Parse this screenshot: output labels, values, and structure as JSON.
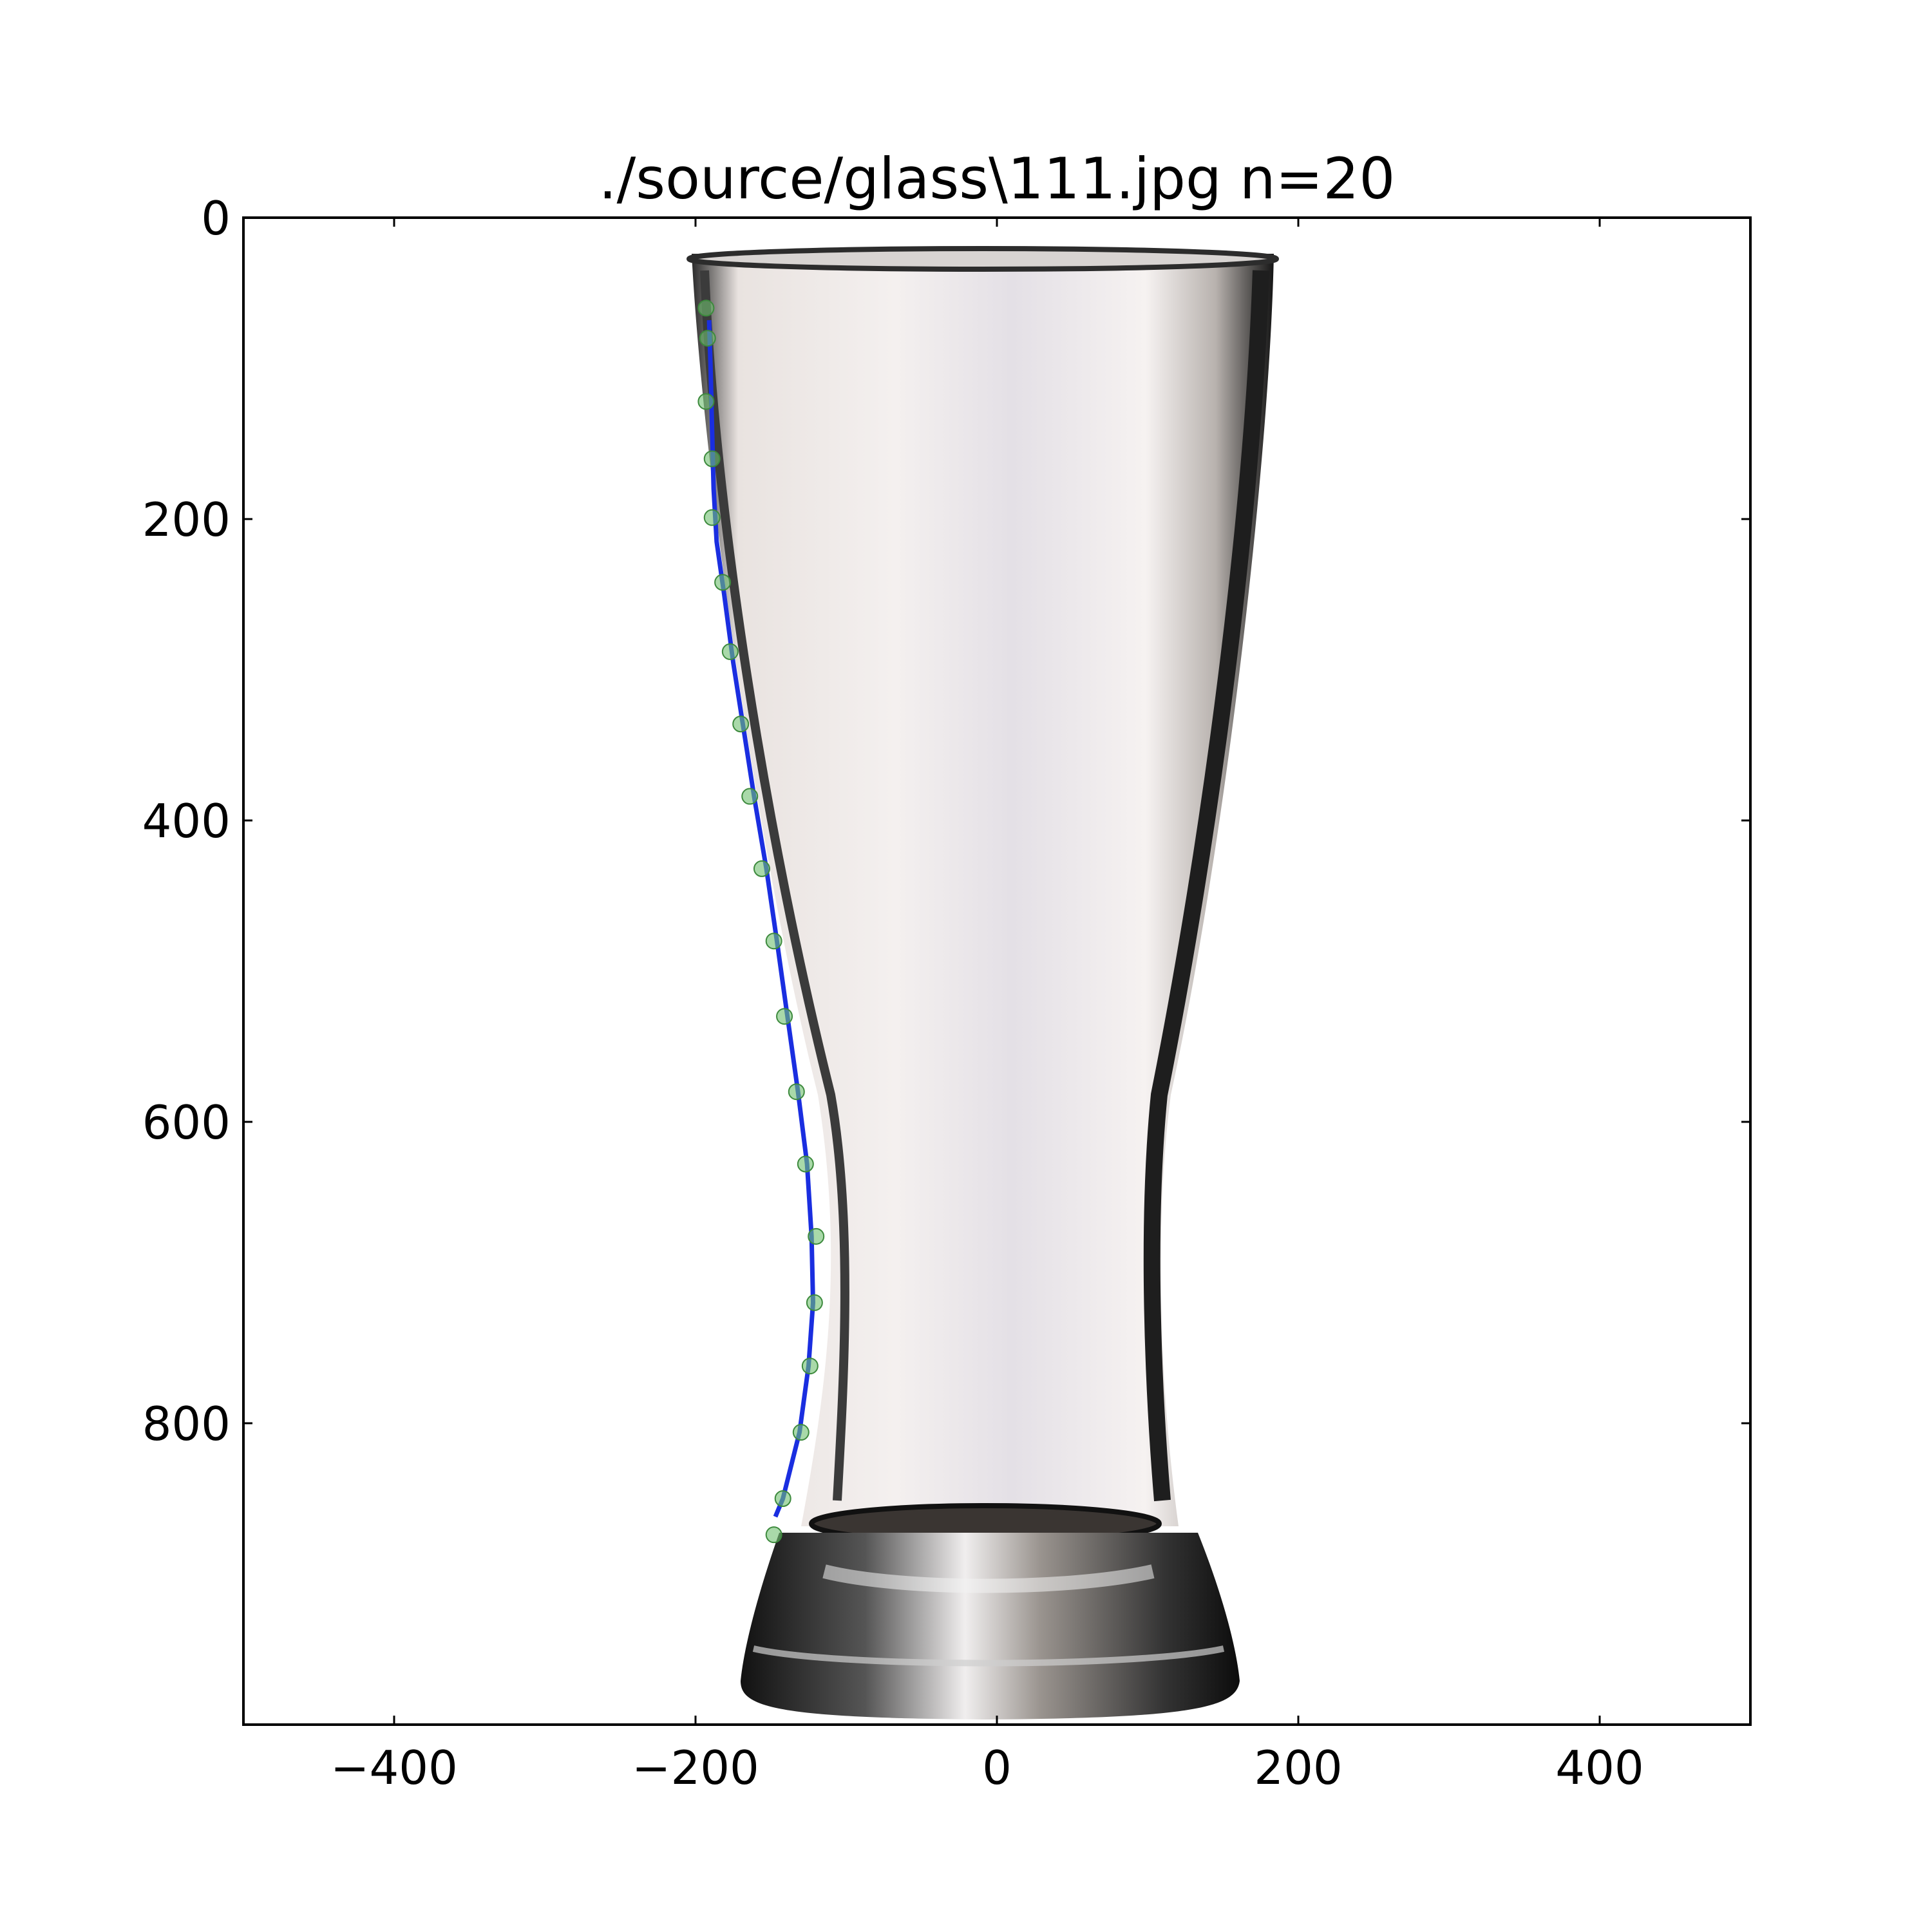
{
  "chart_data": {
    "type": "scatter",
    "title": "./source/glass\\111.jpg n=20",
    "xlabel": "",
    "ylabel": "",
    "xlim": [
      -500,
      500
    ],
    "ylim": [
      0,
      1000
    ],
    "y_inverted": true,
    "grid": false,
    "x_ticks": [
      -400,
      -200,
      0,
      200,
      400
    ],
    "x_tick_labels": [
      "−400",
      "−200",
      "0",
      "200",
      "400"
    ],
    "y_ticks": [
      0,
      200,
      400,
      600,
      800
    ],
    "y_tick_labels": [
      "0",
      "200",
      "400",
      "600",
      "800"
    ],
    "background_image": "glass-photo",
    "series": [
      {
        "kind": "points",
        "color": "#6fbf6f",
        "x": [
          -193,
          -192,
          -193,
          -189,
          -189,
          -182,
          -177,
          -170,
          -164,
          -156,
          -148,
          -141,
          -133,
          -127,
          -120,
          -121,
          -124,
          -130,
          -142,
          -148
        ],
        "y": [
          60,
          80,
          122,
          160,
          199,
          242,
          288,
          336,
          384,
          432,
          480,
          530,
          580,
          628,
          676,
          720,
          762,
          806,
          850,
          874
        ]
      },
      {
        "kind": "line",
        "color": "#1a2ee0",
        "x": [
          -191,
          -190,
          -189,
          -188,
          -186,
          -181,
          -175,
          -168,
          -161,
          -153,
          -146,
          -139,
          -132,
          -126,
          -123,
          -122,
          -125,
          -131,
          -142,
          -147
        ],
        "y": [
          68,
          100,
          140,
          180,
          215,
          250,
          295,
          340,
          385,
          432,
          480,
          530,
          580,
          628,
          676,
          720,
          762,
          806,
          850,
          862
        ]
      }
    ]
  }
}
